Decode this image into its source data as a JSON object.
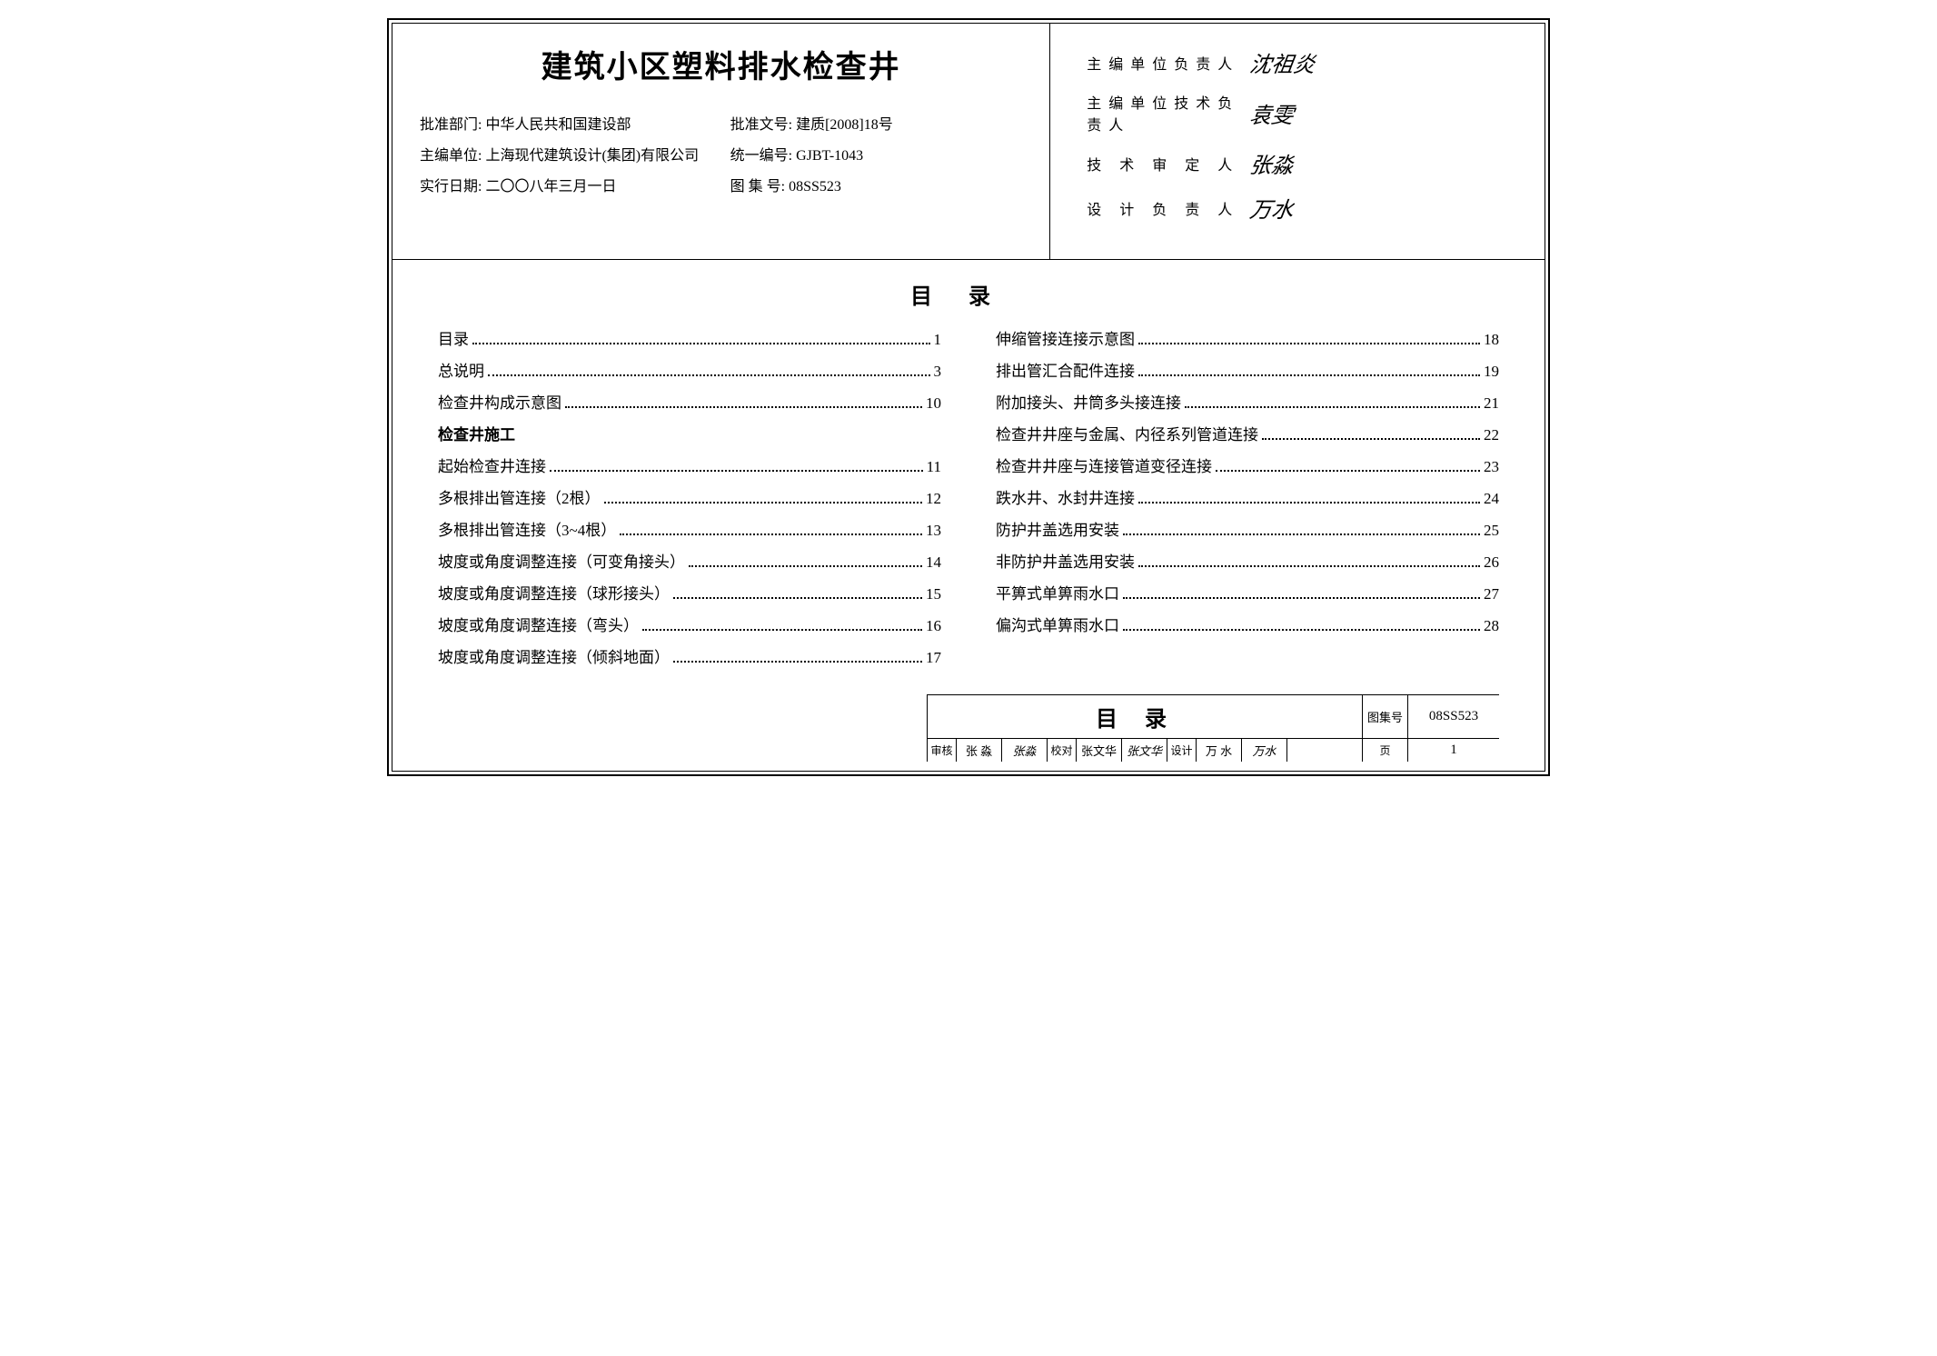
{
  "header": {
    "title": "建筑小区塑料排水检查井",
    "left_info": [
      {
        "label": "批准部门:",
        "value": "中华人民共和国建设部"
      },
      {
        "label": "批准文号:",
        "value": "建质[2008]18号"
      },
      {
        "label": "主编单位:",
        "value": "上海现代建筑设计(集团)有限公司"
      },
      {
        "label": "统一编号:",
        "value": "GJBT-1043"
      },
      {
        "label": "实行日期:",
        "value": "二〇〇八年三月一日"
      },
      {
        "label": "图 集 号:",
        "value": "08SS523"
      }
    ],
    "approvals": [
      {
        "role": "主编单位负责人",
        "signature": "沈祖炎"
      },
      {
        "role": "主编单位技术负责人",
        "signature": "袁雯"
      },
      {
        "role": "技 术 审 定 人",
        "signature": "张淼"
      },
      {
        "role": "设 计 负 责 人",
        "signature": "万水"
      }
    ]
  },
  "toc": {
    "heading": "目录",
    "left_col": [
      {
        "type": "item",
        "label": "目录",
        "page": "1"
      },
      {
        "type": "item",
        "label": "总说明",
        "page": "3"
      },
      {
        "type": "item",
        "label": "检查井构成示意图",
        "page": "10"
      },
      {
        "type": "section",
        "label": "检查井施工"
      },
      {
        "type": "item",
        "label": "起始检查井连接",
        "page": "11"
      },
      {
        "type": "item",
        "label": "多根排出管连接（2根）",
        "page": "12"
      },
      {
        "type": "item",
        "label": "多根排出管连接（3~4根）",
        "page": "13"
      },
      {
        "type": "item",
        "label": "坡度或角度调整连接（可变角接头）",
        "page": "14"
      },
      {
        "type": "item",
        "label": "坡度或角度调整连接（球形接头）",
        "page": "15"
      },
      {
        "type": "item",
        "label": "坡度或角度调整连接（弯头）",
        "page": "16"
      },
      {
        "type": "item",
        "label": "坡度或角度调整连接（倾斜地面）",
        "page": "17"
      }
    ],
    "right_col": [
      {
        "type": "item",
        "label": "伸缩管接连接示意图",
        "page": "18"
      },
      {
        "type": "item",
        "label": "排出管汇合配件连接",
        "page": "19"
      },
      {
        "type": "item",
        "label": "附加接头、井筒多头接连接",
        "page": "21"
      },
      {
        "type": "item",
        "label": "检查井井座与金属、内径系列管道连接",
        "page": "22"
      },
      {
        "type": "item",
        "label": "检查井井座与连接管道变径连接",
        "page": "23"
      },
      {
        "type": "item",
        "label": "跌水井、水封井连接",
        "page": "24"
      },
      {
        "type": "item",
        "label": "防护井盖选用安装",
        "page": "25"
      },
      {
        "type": "item",
        "label": "非防护井盖选用安装",
        "page": "26"
      },
      {
        "type": "item",
        "label": "平箅式单箅雨水口",
        "page": "27"
      },
      {
        "type": "item",
        "label": "偏沟式单箅雨水口",
        "page": "28"
      }
    ]
  },
  "footer": {
    "title": "目录",
    "code_label": "图集号",
    "code_value": "08SS523",
    "review": [
      {
        "role": "审核",
        "name": "张 淼",
        "sig": "张淼"
      },
      {
        "role": "校对",
        "name": "张文华",
        "sig": "张文华"
      },
      {
        "role": "设计",
        "name": "万 水",
        "sig": "万水"
      }
    ],
    "page_label": "页",
    "page_value": "1"
  }
}
